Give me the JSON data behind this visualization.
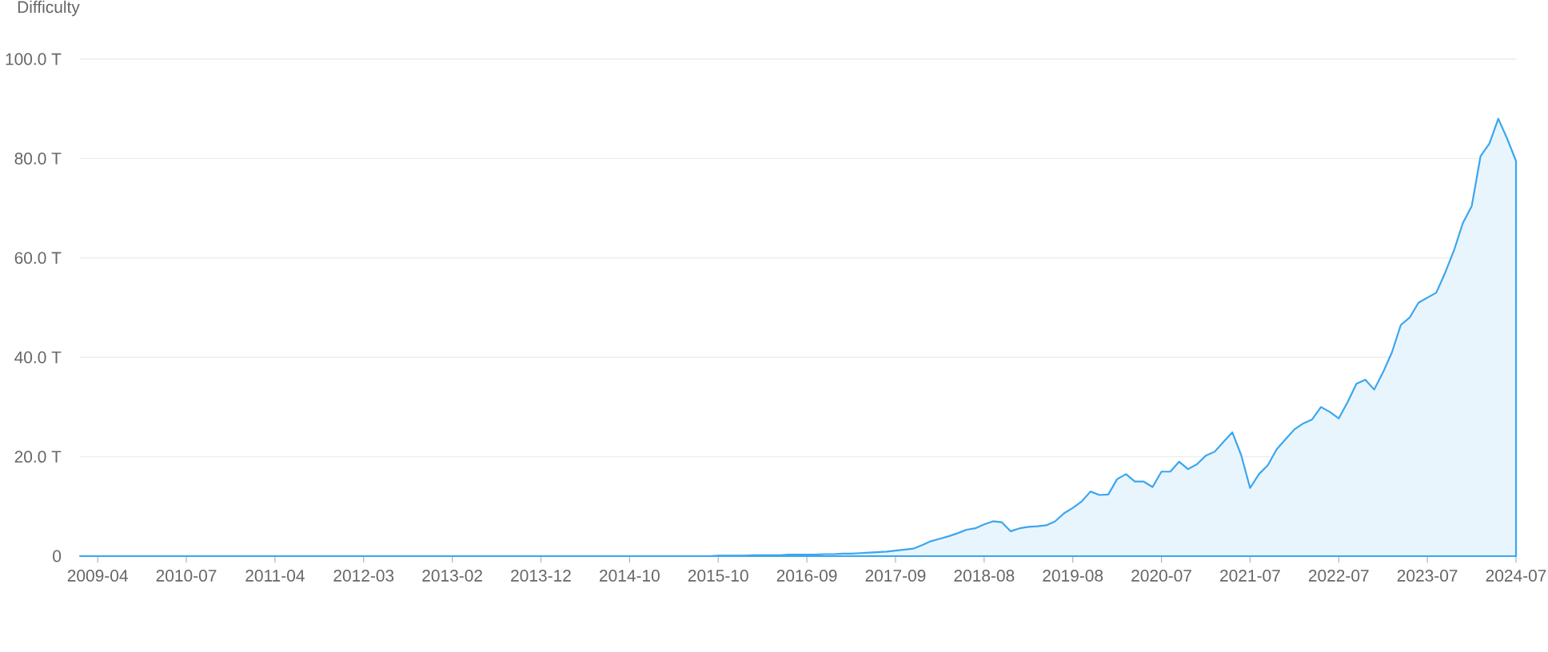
{
  "chart_data": {
    "type": "area",
    "ylabel": "Difficulty",
    "color": "#3aa6f0",
    "categories": [
      null,
      null,
      "2009-04",
      null,
      null,
      null,
      null,
      null,
      null,
      null,
      null,
      null,
      "2010-07",
      null,
      null,
      null,
      null,
      null,
      null,
      null,
      null,
      null,
      "2011-04",
      null,
      null,
      null,
      null,
      null,
      null,
      null,
      null,
      null,
      "2012-03",
      null,
      null,
      null,
      null,
      null,
      null,
      null,
      null,
      null,
      "2013-02",
      null,
      null,
      null,
      null,
      null,
      null,
      null,
      null,
      null,
      "2013-12",
      null,
      null,
      null,
      null,
      null,
      null,
      null,
      null,
      null,
      "2014-10",
      null,
      null,
      null,
      null,
      null,
      null,
      null,
      null,
      null,
      "2015-10",
      null,
      null,
      null,
      null,
      null,
      null,
      null,
      null,
      null,
      "2016-09",
      null,
      null,
      null,
      null,
      null,
      null,
      null,
      null,
      null,
      "2017-09",
      null,
      null,
      null,
      null,
      null,
      null,
      null,
      null,
      null,
      "2018-08",
      null,
      null,
      null,
      null,
      null,
      null,
      null,
      null,
      null,
      "2019-08",
      null,
      null,
      null,
      null,
      null,
      null,
      null,
      null,
      null,
      "2020-07",
      null,
      null,
      null,
      null,
      null,
      null,
      null,
      null,
      null,
      "2021-07",
      null,
      null,
      null,
      null,
      null,
      null,
      null,
      null,
      null,
      "2022-07",
      null,
      null,
      null,
      null,
      null,
      null,
      null,
      null,
      null,
      "2023-07",
      null,
      null,
      null,
      null,
      null,
      null,
      null,
      null,
      null,
      "2024-07"
    ],
    "values": [
      0,
      0,
      0,
      0,
      0,
      0,
      0,
      0,
      0,
      0,
      0,
      0,
      0,
      0,
      0,
      0,
      0,
      0,
      0,
      0,
      0,
      0,
      0,
      0,
      0,
      0,
      0,
      0,
      0,
      0,
      0,
      0,
      0,
      0,
      0,
      0,
      0,
      0,
      0,
      0,
      0,
      0,
      0,
      0,
      0,
      0,
      0,
      0,
      0,
      0,
      0,
      0,
      0,
      0,
      0,
      0,
      0,
      0,
      0,
      0,
      0,
      0,
      0,
      0,
      0,
      0,
      0,
      0,
      0,
      0,
      0,
      0,
      0.1,
      0.1,
      0.1,
      0.1,
      0.2,
      0.2,
      0.2,
      0.2,
      0.3,
      0.3,
      0.3,
      0.3,
      0.4,
      0.4,
      0.5,
      0.5,
      0.6,
      0.7,
      0.8,
      0.9,
      1.1,
      1.3,
      1.5,
      2.2,
      3.0,
      3.5,
      4.0,
      4.6,
      5.3,
      5.6,
      6.4,
      7.0,
      6.8,
      5.0,
      5.6,
      5.9,
      6.0,
      6.2,
      7.0,
      8.6,
      9.7,
      11.0,
      13.0,
      12.3,
      12.4,
      15.5,
      16.5,
      15.0,
      15.0,
      13.9,
      17.0,
      17.0,
      19.0,
      17.5,
      18.5,
      20.2,
      21.0,
      23.0,
      24.9,
      20.3,
      13.7,
      16.5,
      18.3,
      21.5,
      23.5,
      25.5,
      26.7,
      27.5,
      30.0,
      29.0,
      27.7,
      31.0,
      34.7,
      35.5,
      33.5,
      37.0,
      41.0,
      46.5,
      48.0,
      51.0,
      52.0,
      53.0,
      57.0,
      61.5,
      67.0,
      70.4,
      80.5,
      83.0,
      88.0,
      84.0,
      79.5
    ],
    "ylim": [
      0,
      100
    ],
    "yticks": [
      0,
      {
        "value": 20,
        "label": "20.0 T"
      },
      {
        "value": 40,
        "label": "40.0 T"
      },
      {
        "value": 60,
        "label": "60.0 T"
      },
      {
        "value": 80,
        "label": "80.0 T"
      },
      {
        "value": 100,
        "label": "100.0 T"
      }
    ],
    "grid": "y"
  }
}
